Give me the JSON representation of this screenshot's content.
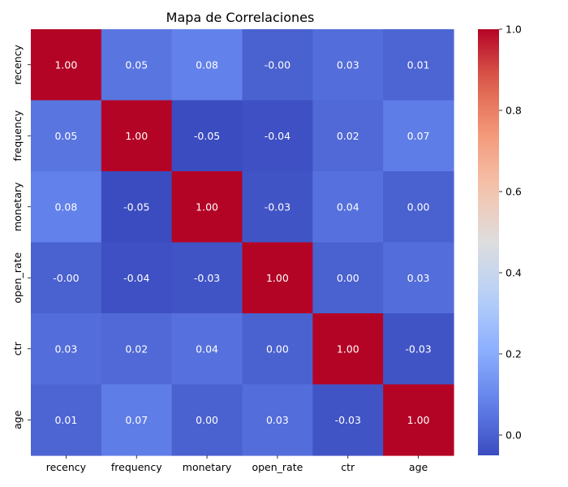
{
  "chart_data": {
    "type": "heatmap",
    "title": "Mapa de Correlaciones",
    "rows": [
      "recency",
      "frequency",
      "monetary",
      "open_rate",
      "ctr",
      "age"
    ],
    "columns": [
      "recency",
      "frequency",
      "monetary",
      "open_rate",
      "ctr",
      "age"
    ],
    "values": [
      [
        1.0,
        0.05,
        0.08,
        -0.0,
        0.03,
        0.01
      ],
      [
        0.05,
        1.0,
        -0.05,
        -0.04,
        0.02,
        0.07
      ],
      [
        0.08,
        -0.05,
        1.0,
        -0.03,
        0.04,
        0.0
      ],
      [
        -0.0,
        -0.04,
        -0.03,
        1.0,
        0.0,
        0.03
      ],
      [
        0.03,
        0.02,
        0.04,
        0.0,
        1.0,
        -0.03
      ],
      [
        0.01,
        0.07,
        0.0,
        0.03,
        -0.03,
        1.0
      ]
    ],
    "labels": [
      [
        "1.00",
        "0.05",
        "0.08",
        "-0.00",
        "0.03",
        "0.01"
      ],
      [
        "0.05",
        "1.00",
        "-0.05",
        "-0.04",
        "0.02",
        "0.07"
      ],
      [
        "0.08",
        "-0.05",
        "1.00",
        "-0.03",
        "0.04",
        "0.00"
      ],
      [
        "-0.00",
        "-0.04",
        "-0.03",
        "1.00",
        "0.00",
        "0.03"
      ],
      [
        "0.03",
        "0.02",
        "0.04",
        "0.00",
        "1.00",
        "-0.03"
      ],
      [
        "0.01",
        "0.07",
        "0.00",
        "0.03",
        "-0.03",
        "1.00"
      ]
    ],
    "colormap": "coolwarm",
    "vmin": -0.05,
    "vmax": 1.0,
    "colorbar_ticks": [
      "0.0",
      "0.2",
      "0.4",
      "0.6",
      "0.8",
      "1.0"
    ],
    "colorbar_tick_values": [
      0.0,
      0.2,
      0.4,
      0.6,
      0.8,
      1.0
    ],
    "grid": false
  }
}
